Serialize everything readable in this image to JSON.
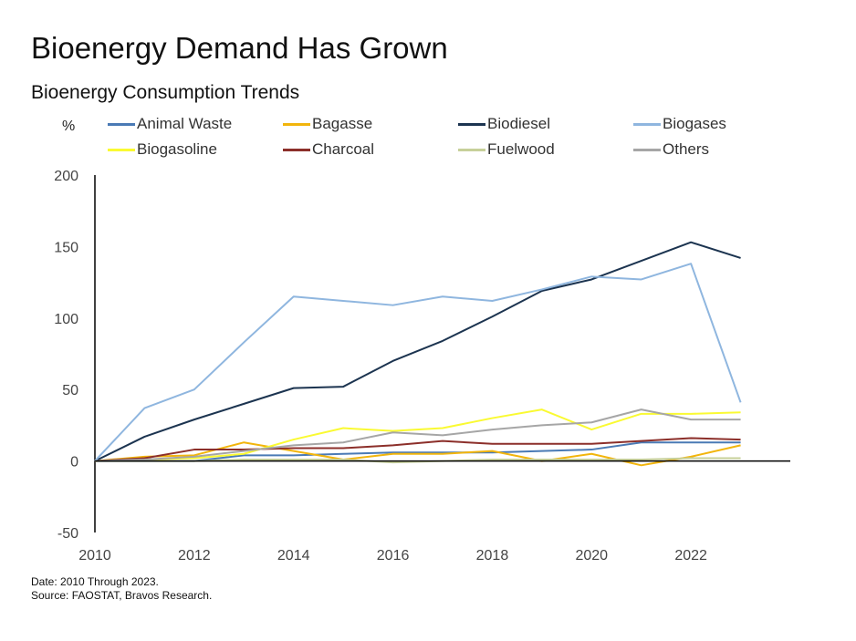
{
  "header": {
    "title": "Bioenergy Demand Has Grown",
    "subtitle": "Bioenergy Consumption Trends",
    "unit": "%"
  },
  "footer": {
    "date_note": "Date: 2010 Through 2023.",
    "source_note": "Source: FAOSTAT, Bravos Research."
  },
  "chart_data": {
    "type": "line",
    "title": "Bioenergy Consumption Trends",
    "ylabel": "%",
    "xlabel": "",
    "x": [
      2010,
      2011,
      2012,
      2013,
      2014,
      2015,
      2016,
      2017,
      2018,
      2019,
      2020,
      2021,
      2022,
      2023
    ],
    "xlim": [
      2010,
      2024
    ],
    "ylim": [
      -50,
      200
    ],
    "x_ticks": [
      "2010",
      "2012",
      "2014",
      "2016",
      "2018",
      "2020",
      "2022"
    ],
    "y_ticks": [
      "200",
      "150",
      "100",
      "50",
      "0",
      "-50"
    ],
    "legend_position": "top",
    "grid": false,
    "series": [
      {
        "name": "Animal Waste",
        "color": "#4a7ab5",
        "values": [
          0,
          0,
          0,
          4,
          4,
          5,
          6,
          6,
          6,
          7,
          8,
          13,
          13,
          13
        ]
      },
      {
        "name": "Bagasse",
        "color": "#f2b50c",
        "values": [
          0,
          3,
          4,
          13,
          7,
          1,
          5,
          5,
          7,
          0,
          5,
          -3,
          3,
          11
        ]
      },
      {
        "name": "Biodiesel",
        "color": "#1c3450",
        "values": [
          0,
          17,
          29,
          40,
          51,
          52,
          70,
          84,
          101,
          119,
          127,
          140,
          153,
          142
        ]
      },
      {
        "name": "Biogases",
        "color": "#8fb6df",
        "values": [
          0,
          37,
          50,
          83,
          115,
          112,
          109,
          115,
          112,
          120,
          129,
          127,
          138,
          41
        ]
      },
      {
        "name": "Biogasoline",
        "color": "#fafa32",
        "values": [
          0,
          1,
          2,
          5,
          15,
          23,
          21,
          23,
          30,
          36,
          22,
          33,
          33,
          34
        ]
      },
      {
        "name": "Charcoal",
        "color": "#8c2f2a",
        "values": [
          0,
          2,
          8,
          8,
          9,
          9,
          11,
          14,
          12,
          12,
          12,
          14,
          16,
          15
        ]
      },
      {
        "name": "Fuelwood",
        "color": "#c7d09a",
        "values": [
          0,
          0,
          0,
          1,
          1,
          1,
          -1,
          0,
          1,
          1,
          1,
          1,
          2,
          2
        ]
      },
      {
        "name": "Others",
        "color": "#a6a6a6",
        "values": [
          0,
          1,
          3,
          7,
          11,
          13,
          20,
          18,
          22,
          25,
          27,
          36,
          29,
          29
        ]
      }
    ]
  }
}
